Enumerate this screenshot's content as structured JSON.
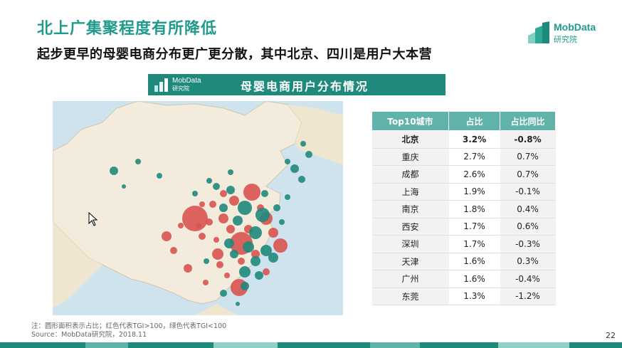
{
  "title": "北上广集聚程度有所降低",
  "subtitle": "起步更早的母婴电商分布更广更分散，其中北京、四川是用户大本营",
  "logo": {
    "name": "MobData",
    "sub": "研究院"
  },
  "banner": {
    "logo_name": "MobData",
    "logo_sub": "研究院",
    "text": "母婴电商用户分布情况"
  },
  "chart_data": {
    "type": "table",
    "columns": [
      "Top10城市",
      "占比",
      "占比同比"
    ],
    "rows": [
      [
        "北京",
        "3.2%",
        "-0.8%"
      ],
      [
        "重庆",
        "2.7%",
        "0.7%"
      ],
      [
        "成都",
        "2.6%",
        "0.7%"
      ],
      [
        "上海",
        "1.9%",
        "-0.1%"
      ],
      [
        "南京",
        "1.8%",
        "0.4%"
      ],
      [
        "西安",
        "1.7%",
        "0.6%"
      ],
      [
        "深圳",
        "1.7%",
        "-0.3%"
      ],
      [
        "天津",
        "1.6%",
        "0.3%"
      ],
      [
        "广州",
        "1.6%",
        "-0.4%"
      ],
      [
        "东莞",
        "1.3%",
        "-1.2%"
      ]
    ]
  },
  "colors": {
    "red": "#d9534f",
    "green": "#1f8a7c",
    "accent": "#1f9a8c"
  },
  "note": {
    "line1": "注：圆形面积表示占比；红色代表TGI>100，绿色代表TGI<100",
    "line2": "Source：MobData研究院，2018.11"
  },
  "page_number": "22"
}
